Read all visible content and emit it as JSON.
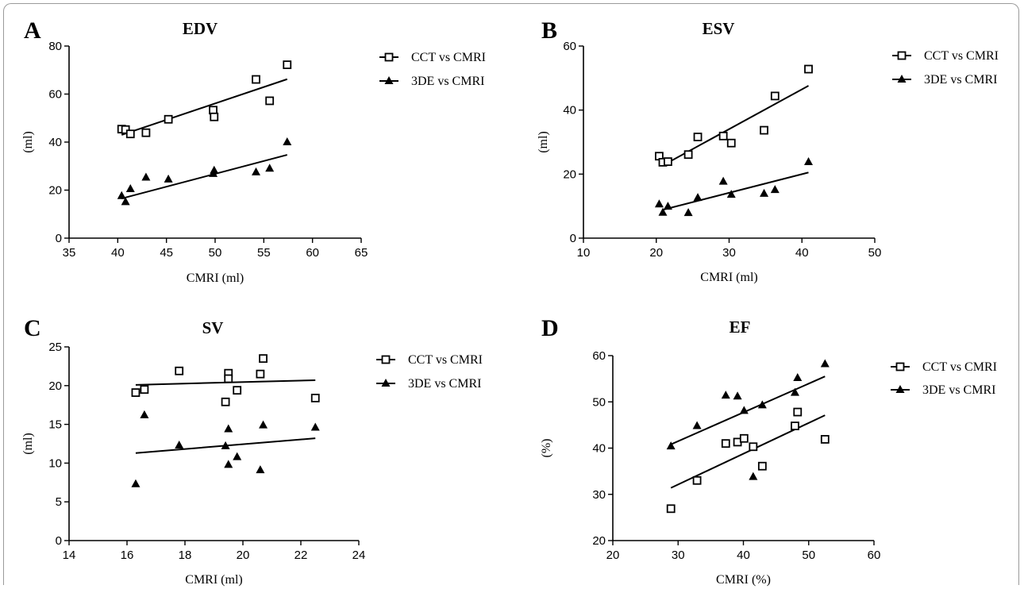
{
  "chart_data": [
    {
      "panel": "A",
      "type": "scatter",
      "title": "EDV",
      "xlabel": "CMRI (ml)",
      "ylabel": "(ml)",
      "xlim": [
        35,
        65
      ],
      "ylim": [
        0,
        80
      ],
      "xticks": [
        35,
        40,
        45,
        50,
        55,
        60,
        65
      ],
      "yticks": [
        0,
        20,
        40,
        60,
        80
      ],
      "legend_position": "top-right",
      "series": [
        {
          "name": "CCT vs CMRI",
          "marker": "open-square",
          "points": [
            [
              40.4,
              45.4
            ],
            [
              40.8,
              45.2
            ],
            [
              41.3,
              43.4
            ],
            [
              42.9,
              43.9
            ],
            [
              45.2,
              49.5
            ],
            [
              49.8,
              53.3
            ],
            [
              49.9,
              50.5
            ],
            [
              54.2,
              66.1
            ],
            [
              55.6,
              57.2
            ],
            [
              57.4,
              72.2
            ]
          ],
          "fit": [
            [
              40.4,
              43.0
            ],
            [
              57.4,
              66.2
            ]
          ]
        },
        {
          "name": "3DE vs CMRI",
          "marker": "filled-triangle",
          "points": [
            [
              40.4,
              17.6
            ],
            [
              40.8,
              15.1
            ],
            [
              41.3,
              20.5
            ],
            [
              42.9,
              25.3
            ],
            [
              45.2,
              24.5
            ],
            [
              49.8,
              26.8
            ],
            [
              49.9,
              28.2
            ],
            [
              54.2,
              27.5
            ],
            [
              55.6,
              29.0
            ],
            [
              57.4,
              40.0
            ]
          ],
          "fit": [
            [
              40.4,
              16.5
            ],
            [
              57.4,
              34.7
            ]
          ]
        }
      ]
    },
    {
      "panel": "B",
      "type": "scatter",
      "title": "ESV",
      "xlabel": "CMRI (ml)",
      "ylabel": "(ml)",
      "xlim": [
        10,
        50
      ],
      "ylim": [
        0,
        60
      ],
      "xticks": [
        10,
        20,
        30,
        40,
        50
      ],
      "yticks": [
        0,
        20,
        40,
        60
      ],
      "legend_position": "top-right",
      "series": [
        {
          "name": "CCT vs CMRI",
          "marker": "open-square",
          "points": [
            [
              20.4,
              25.6
            ],
            [
              20.9,
              23.7
            ],
            [
              21.6,
              23.9
            ],
            [
              24.4,
              26.1
            ],
            [
              25.7,
              31.6
            ],
            [
              29.2,
              31.9
            ],
            [
              30.3,
              29.7
            ],
            [
              34.8,
              33.7
            ],
            [
              36.3,
              44.4
            ],
            [
              40.9,
              52.8
            ]
          ],
          "fit": [
            [
              20.8,
              22.6
            ],
            [
              40.9,
              47.6
            ]
          ]
        },
        {
          "name": "3DE vs CMRI",
          "marker": "filled-triangle",
          "points": [
            [
              20.4,
              10.6
            ],
            [
              20.9,
              8.0
            ],
            [
              21.6,
              9.9
            ],
            [
              24.4,
              7.9
            ],
            [
              25.7,
              12.6
            ],
            [
              29.2,
              17.7
            ],
            [
              30.3,
              13.6
            ],
            [
              34.8,
              13.9
            ],
            [
              36.3,
              15.1
            ],
            [
              40.9,
              23.8
            ]
          ],
          "fit": [
            [
              20.8,
              8.8
            ],
            [
              40.9,
              20.5
            ]
          ]
        }
      ]
    },
    {
      "panel": "C",
      "type": "scatter",
      "title": "SV",
      "xlabel": "CMRI (ml)",
      "ylabel": "(ml)",
      "xlim": [
        14,
        24
      ],
      "ylim": [
        0,
        25
      ],
      "xticks": [
        14,
        16,
        18,
        20,
        22,
        24
      ],
      "yticks": [
        0,
        5,
        10,
        15,
        20,
        25
      ],
      "legend_position": "top-right",
      "series": [
        {
          "name": "CCT vs CMRI",
          "marker": "open-square",
          "points": [
            [
              16.3,
              19.1
            ],
            [
              16.6,
              19.5
            ],
            [
              17.8,
              21.9
            ],
            [
              19.4,
              17.9
            ],
            [
              19.5,
              21.6
            ],
            [
              19.5,
              20.9
            ],
            [
              19.8,
              19.4
            ],
            [
              20.6,
              21.5
            ],
            [
              20.7,
              23.5
            ],
            [
              22.5,
              18.4
            ]
          ],
          "fit": [
            [
              16.3,
              20.1
            ],
            [
              22.5,
              20.7
            ]
          ]
        },
        {
          "name": "3DE vs CMRI",
          "marker": "filled-triangle",
          "points": [
            [
              16.3,
              7.3
            ],
            [
              16.6,
              16.2
            ],
            [
              17.8,
              12.3
            ],
            [
              19.4,
              12.2
            ],
            [
              19.5,
              14.4
            ],
            [
              19.5,
              9.8
            ],
            [
              19.8,
              10.8
            ],
            [
              20.6,
              9.1
            ],
            [
              20.7,
              14.9
            ],
            [
              22.5,
              14.6
            ]
          ],
          "fit": [
            [
              16.3,
              11.3
            ],
            [
              22.5,
              13.2
            ]
          ]
        }
      ]
    },
    {
      "panel": "D",
      "type": "scatter",
      "title": "EF",
      "xlabel": "CMRI (%)",
      "ylabel": "(%)",
      "xlim": [
        20,
        60
      ],
      "ylim": [
        20,
        60
      ],
      "xticks": [
        20,
        30,
        40,
        50,
        60
      ],
      "yticks": [
        20,
        30,
        40,
        50,
        60
      ],
      "legend_position": "top-right",
      "series": [
        {
          "name": "CCT vs CMRI",
          "marker": "open-square",
          "points": [
            [
              28.9,
              26.9
            ],
            [
              32.9,
              33.0
            ],
            [
              37.3,
              41.0
            ],
            [
              39.1,
              41.3
            ],
            [
              40.1,
              42.1
            ],
            [
              41.5,
              40.3
            ],
            [
              42.9,
              36.1
            ],
            [
              47.9,
              44.8
            ],
            [
              48.3,
              47.8
            ],
            [
              52.5,
              41.9
            ]
          ],
          "fit": [
            [
              28.9,
              31.4
            ],
            [
              52.5,
              47.1
            ]
          ]
        },
        {
          "name": "3DE vs CMRI",
          "marker": "filled-triangle",
          "points": [
            [
              28.9,
              40.4
            ],
            [
              32.9,
              44.8
            ],
            [
              37.3,
              51.4
            ],
            [
              39.1,
              51.2
            ],
            [
              40.1,
              48.1
            ],
            [
              41.5,
              33.8
            ],
            [
              42.9,
              49.3
            ],
            [
              47.9,
              52.0
            ],
            [
              48.3,
              55.2
            ],
            [
              52.5,
              58.2
            ]
          ],
          "fit": [
            [
              28.9,
              40.8
            ],
            [
              52.5,
              55.5
            ]
          ]
        }
      ]
    }
  ]
}
